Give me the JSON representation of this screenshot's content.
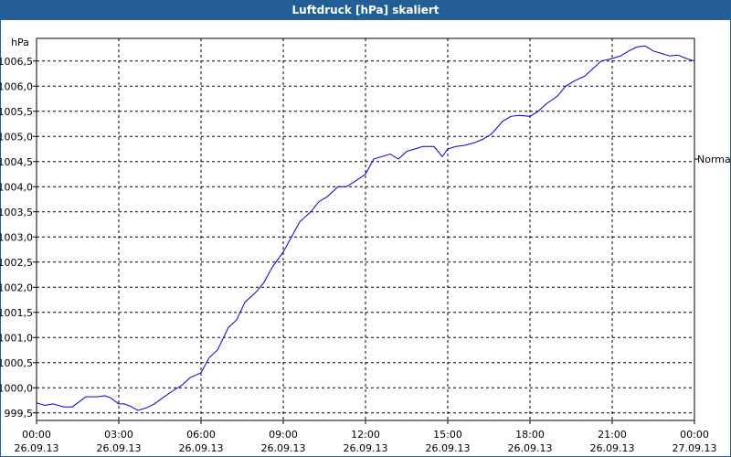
{
  "window": {
    "title": "Luftdruck [hPa] skaliert"
  },
  "chart_data": {
    "type": "line",
    "title": "Luftdruck [hPa] skaliert",
    "ylabel": "hPa",
    "xlabel": "",
    "ylim": [
      999.35,
      1006.95
    ],
    "y_ticks": [
      {
        "value": 999.5,
        "label": "999,5"
      },
      {
        "value": 1000.0,
        "label": "1000,0"
      },
      {
        "value": 1000.5,
        "label": "1000,5"
      },
      {
        "value": 1001.0,
        "label": "1001,0"
      },
      {
        "value": 1001.5,
        "label": "1001,5"
      },
      {
        "value": 1002.0,
        "label": "1002,0"
      },
      {
        "value": 1002.5,
        "label": "1002,5"
      },
      {
        "value": 1003.0,
        "label": "1003,0"
      },
      {
        "value": 1003.5,
        "label": "1003,5"
      },
      {
        "value": 1004.0,
        "label": "1004,0"
      },
      {
        "value": 1004.5,
        "label": "1004,5"
      },
      {
        "value": 1005.0,
        "label": "1005,0"
      },
      {
        "value": 1005.5,
        "label": "1005,5"
      },
      {
        "value": 1006.0,
        "label": "1006,0"
      },
      {
        "value": 1006.5,
        "label": "1006,5"
      }
    ],
    "x_ticks": [
      {
        "hour": 0,
        "time": "00:00",
        "date": "26.09.13"
      },
      {
        "hour": 3,
        "time": "03:00",
        "date": "26.09.13"
      },
      {
        "hour": 6,
        "time": "06:00",
        "date": "26.09.13"
      },
      {
        "hour": 9,
        "time": "09:00",
        "date": "26.09.13"
      },
      {
        "hour": 12,
        "time": "12:00",
        "date": "26.09.13"
      },
      {
        "hour": 15,
        "time": "15:00",
        "date": "26.09.13"
      },
      {
        "hour": 18,
        "time": "18:00",
        "date": "26.09.13"
      },
      {
        "hour": 21,
        "time": "21:00",
        "date": "26.09.13"
      },
      {
        "hour": 24,
        "time": "00:00",
        "date": "27.09.13"
      }
    ],
    "xlim": [
      0,
      24
    ],
    "grid": true,
    "reference_line": {
      "label": "Normal",
      "value": 1004.55
    },
    "series": [
      {
        "color": "#0000cc",
        "x": [
          0,
          0.3,
          0.6,
          1.0,
          1.3,
          1.8,
          2.2,
          2.5,
          2.7,
          3.0,
          3.2,
          3.4,
          3.7,
          4.0,
          4.3,
          4.6,
          5.0,
          5.3,
          5.6,
          6.0,
          6.3,
          6.6,
          7.0,
          7.3,
          7.6,
          8.0,
          8.3,
          8.6,
          9.0,
          9.3,
          9.6,
          10.0,
          10.3,
          10.6,
          11.0,
          11.3,
          11.6,
          12.0,
          12.3,
          12.6,
          12.9,
          13.2,
          13.5,
          13.8,
          14.1,
          14.5,
          14.8,
          15.0,
          15.3,
          15.6,
          16.0,
          16.3,
          16.6,
          17.0,
          17.3,
          17.6,
          18.0,
          18.3,
          18.6,
          19.0,
          19.3,
          19.6,
          20.0,
          20.3,
          20.6,
          21.0,
          21.3,
          21.6,
          21.9,
          22.2,
          22.5,
          22.8,
          23.1,
          23.4,
          23.7,
          24.0
        ],
        "y": [
          999.7,
          999.65,
          999.68,
          999.62,
          999.62,
          999.82,
          999.82,
          999.84,
          999.8,
          999.68,
          999.68,
          999.64,
          999.55,
          999.6,
          999.68,
          999.8,
          999.95,
          1000.05,
          1000.2,
          1000.3,
          1000.6,
          1000.75,
          1001.2,
          1001.35,
          1001.7,
          1001.9,
          1002.1,
          1002.4,
          1002.7,
          1003.0,
          1003.3,
          1003.5,
          1003.7,
          1003.8,
          1004.0,
          1004.0,
          1004.1,
          1004.25,
          1004.55,
          1004.6,
          1004.65,
          1004.55,
          1004.7,
          1004.75,
          1004.8,
          1004.8,
          1004.6,
          1004.75,
          1004.8,
          1004.82,
          1004.88,
          1004.95,
          1005.05,
          1005.3,
          1005.4,
          1005.42,
          1005.4,
          1005.5,
          1005.65,
          1005.8,
          1006.0,
          1006.1,
          1006.2,
          1006.35,
          1006.5,
          1006.55,
          1006.6,
          1006.7,
          1006.78,
          1006.8,
          1006.7,
          1006.65,
          1006.6,
          1006.62,
          1006.55,
          1006.5
        ]
      }
    ]
  }
}
